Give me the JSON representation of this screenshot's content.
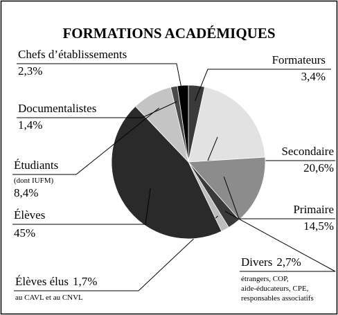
{
  "chart_data": {
    "type": "pie",
    "title": "FORMATIONS ACADÉMIQUES",
    "categories": [
      "Formateurs",
      "Secondaire",
      "Primaire",
      "Divers",
      "Élèves élus",
      "Élèves",
      "Étudiants",
      "Documentalistes",
      "Chefs d’établissements"
    ],
    "values": [
      3.4,
      20.6,
      14.5,
      2.7,
      1.7,
      45,
      8.4,
      1.4,
      2.3
    ],
    "value_labels": [
      "3,4%",
      "20,6%",
      "14,5%",
      "2,7%",
      "1,7%",
      "45%",
      "8,4%",
      "1,4%",
      "2,3%"
    ],
    "notes": [
      null,
      null,
      null,
      [
        "étrangers, COP,",
        "aide-éducateurs, CPE,",
        "responsables associatifs"
      ],
      [
        "au CAVL et au CNVL"
      ],
      null,
      [
        "(dont IUFM)"
      ],
      null,
      null
    ],
    "colors": [
      "#3a3a3a",
      "#e2e2e2",
      "#8c8c8c",
      "#3a3a3a",
      "#bdbdbd",
      "#2a2a2a",
      "#c4c4c4",
      "#4a4a4a",
      "#000000"
    ]
  }
}
